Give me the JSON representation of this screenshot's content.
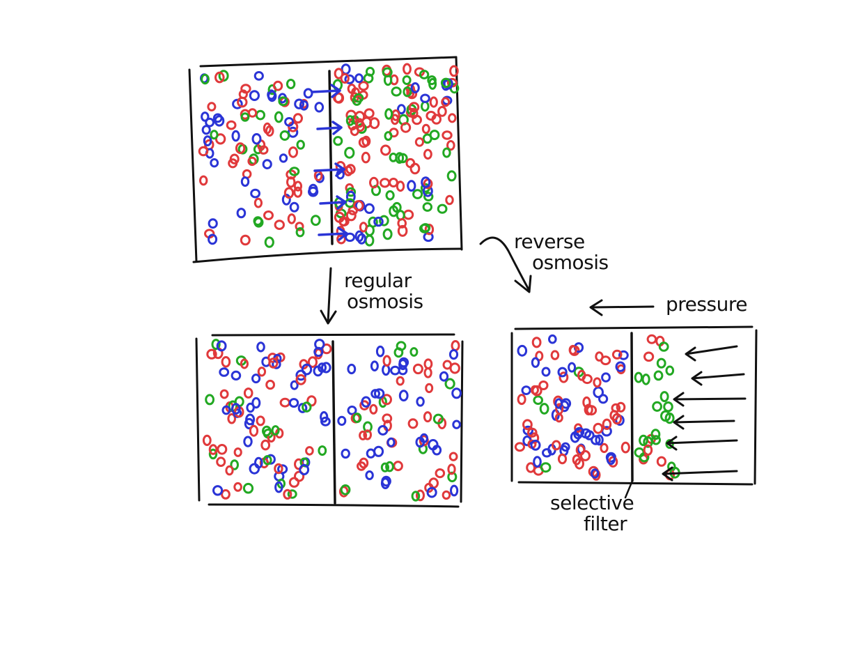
{
  "labels": {
    "regular_osmosis": [
      "regular",
      "osmosis"
    ],
    "reverse_osmosis": [
      "reverse",
      "osmosis"
    ],
    "pressure": "pressure",
    "selective_filter": [
      "selective",
      "filter"
    ]
  },
  "colors": {
    "ink": "#111111",
    "red": "#e0393b",
    "blue": "#2a34d6",
    "green": "#22a822"
  },
  "icons": [
    "down-arrow-icon",
    "curved-arrow-icon",
    "left-arrow-icon",
    "flow-arrow-icon"
  ]
}
